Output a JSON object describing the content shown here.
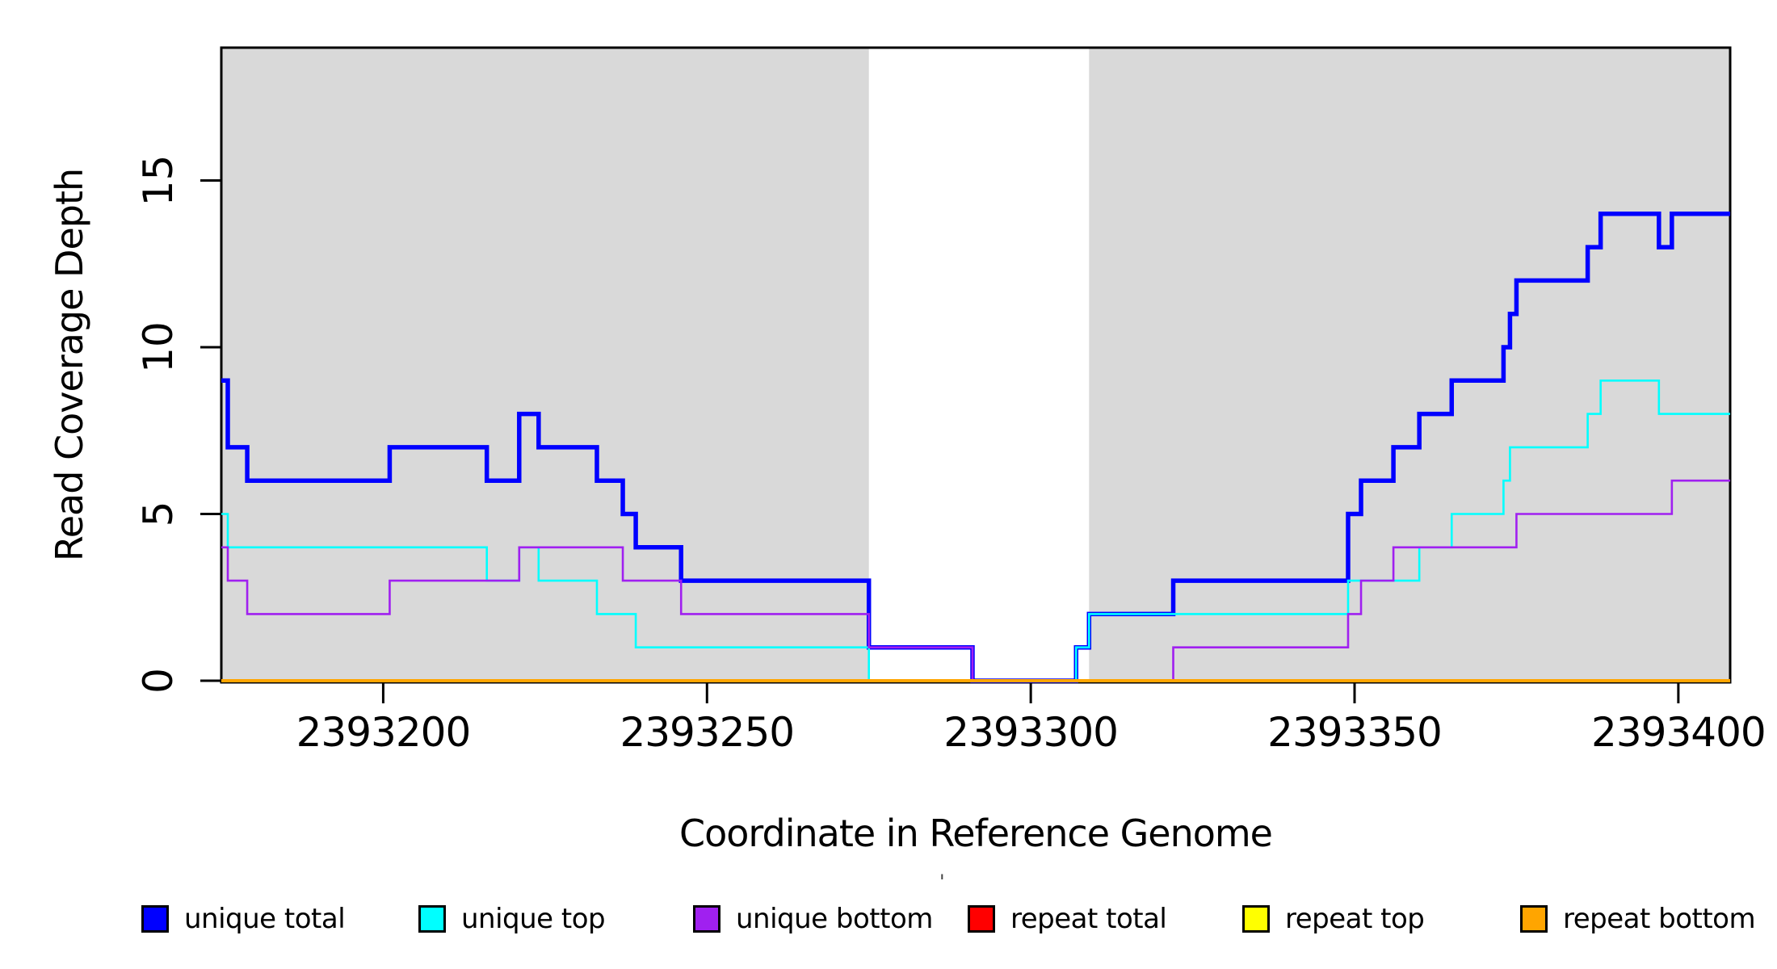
{
  "chart_data": {
    "type": "line",
    "subtype": "step",
    "title": "",
    "xlabel": "Coordinate in Reference Genome",
    "ylabel": "Read Coverage Depth",
    "xlim": [
      2393175,
      2393408
    ],
    "ylim": [
      0,
      19
    ],
    "x_ticks": [
      "2393200",
      "2393250",
      "2393300",
      "2393350",
      "2393400"
    ],
    "x_tick_values": [
      2393200,
      2393250,
      2393300,
      2393350,
      2393400
    ],
    "y_ticks": [
      "0",
      "5",
      "10",
      "15"
    ],
    "y_tick_values": [
      0,
      5,
      10,
      15
    ],
    "grid": "off",
    "legend_position": "bottom",
    "plot_background": "#FFFFFF",
    "shaded_region_color": "#D9D9D9",
    "background_regions": [
      {
        "name": "unique-region-left",
        "x0": 2393175,
        "x1": 2393275
      },
      {
        "name": "unique-region-right",
        "x0": 2393309,
        "x1": 2393408
      }
    ],
    "series": [
      {
        "name": "unique total",
        "color": "#0000FF",
        "width": 5.5,
        "steps": [
          [
            2393175,
            9
          ],
          [
            2393176,
            7
          ],
          [
            2393179,
            6
          ],
          [
            2393201,
            7
          ],
          [
            2393216,
            6
          ],
          [
            2393221,
            8
          ],
          [
            2393224,
            7
          ],
          [
            2393233,
            6
          ],
          [
            2393237,
            5
          ],
          [
            2393239,
            4
          ],
          [
            2393246,
            3
          ],
          [
            2393275,
            1
          ],
          [
            2393291,
            0
          ],
          [
            2393307,
            1
          ],
          [
            2393309,
            2
          ],
          [
            2393322,
            3
          ],
          [
            2393349,
            5
          ],
          [
            2393351,
            6
          ],
          [
            2393356,
            7
          ],
          [
            2393360,
            8
          ],
          [
            2393365,
            9
          ],
          [
            2393373,
            10
          ],
          [
            2393374,
            11
          ],
          [
            2393375,
            12
          ],
          [
            2393386,
            13
          ],
          [
            2393388,
            14
          ],
          [
            2393397,
            13
          ],
          [
            2393399,
            14
          ],
          [
            2393408,
            14
          ]
        ]
      },
      {
        "name": "unique top",
        "color": "#00FFFF",
        "width": 2.6,
        "steps": [
          [
            2393175,
            5
          ],
          [
            2393176,
            4
          ],
          [
            2393216,
            3
          ],
          [
            2393221,
            4
          ],
          [
            2393224,
            3
          ],
          [
            2393233,
            2
          ],
          [
            2393239,
            1
          ],
          [
            2393275,
            0
          ],
          [
            2393307,
            1
          ],
          [
            2393309,
            2
          ],
          [
            2393349,
            3
          ],
          [
            2393360,
            4
          ],
          [
            2393365,
            5
          ],
          [
            2393373,
            6
          ],
          [
            2393374,
            7
          ],
          [
            2393386,
            8
          ],
          [
            2393388,
            9
          ],
          [
            2393397,
            8
          ],
          [
            2393408,
            8
          ]
        ]
      },
      {
        "name": "unique bottom",
        "color": "#A020F0",
        "width": 2.6,
        "steps": [
          [
            2393175,
            4
          ],
          [
            2393176,
            3
          ],
          [
            2393179,
            2
          ],
          [
            2393201,
            3
          ],
          [
            2393221,
            4
          ],
          [
            2393237,
            3
          ],
          [
            2393246,
            2
          ],
          [
            2393275,
            1
          ],
          [
            2393291,
            0
          ],
          [
            2393322,
            1
          ],
          [
            2393349,
            2
          ],
          [
            2393351,
            3
          ],
          [
            2393356,
            4
          ],
          [
            2393375,
            5
          ],
          [
            2393399,
            6
          ],
          [
            2393408,
            6
          ]
        ]
      },
      {
        "name": "repeat total",
        "color": "#FF0000",
        "width": 2.6,
        "steps": [
          [
            2393175,
            0
          ],
          [
            2393408,
            0
          ]
        ]
      },
      {
        "name": "repeat top",
        "color": "#FFFF00",
        "width": 2.6,
        "steps": [
          [
            2393175,
            0
          ],
          [
            2393408,
            0
          ]
        ]
      },
      {
        "name": "repeat bottom",
        "color": "#FFA500",
        "width": 4,
        "steps": [
          [
            2393175,
            0
          ],
          [
            2393408,
            0
          ]
        ]
      }
    ],
    "legend": [
      {
        "label": "unique total",
        "color": "#0000FF"
      },
      {
        "label": "unique top",
        "color": "#00FFFF"
      },
      {
        "label": "unique bottom",
        "color": "#A020F0"
      },
      {
        "label": "repeat total",
        "color": "#FF0000"
      },
      {
        "label": "repeat top",
        "color": "#FFFF00"
      },
      {
        "label": "repeat bottom",
        "color": "#FFA500"
      }
    ]
  },
  "annotations": {
    "stray_mark": "'"
  }
}
